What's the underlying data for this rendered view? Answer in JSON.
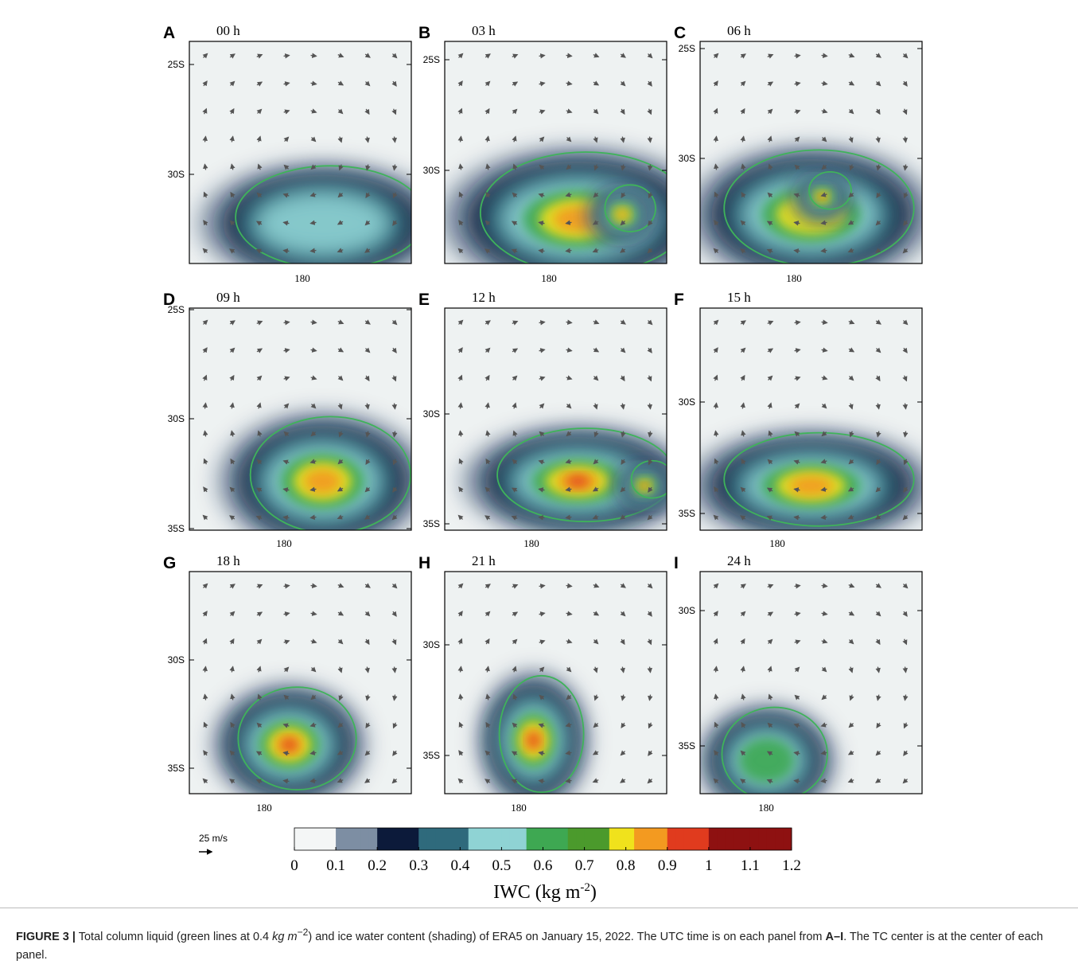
{
  "figure": {
    "panels": [
      {
        "letter": "A",
        "time": "00 h",
        "lat_labels": [
          "25S",
          "30S"
        ],
        "lon_label": "180"
      },
      {
        "letter": "B",
        "time": "03 h",
        "lat_labels": [
          "25S",
          "30S"
        ],
        "lon_label": "180"
      },
      {
        "letter": "C",
        "time": "06 h",
        "lat_labels": [
          "25S",
          "30S"
        ],
        "lon_label": "180"
      },
      {
        "letter": "D",
        "time": "09 h",
        "lat_labels": [
          "25S",
          "30S",
          "35S"
        ],
        "lon_label": "180"
      },
      {
        "letter": "E",
        "time": "12 h",
        "lat_labels": [
          "30S",
          "35S"
        ],
        "lon_label": "180"
      },
      {
        "letter": "F",
        "time": "15 h",
        "lat_labels": [
          "30S",
          "35S"
        ],
        "lon_label": "180"
      },
      {
        "letter": "G",
        "time": "18 h",
        "lat_labels": [
          "30S",
          "35S"
        ],
        "lon_label": "180"
      },
      {
        "letter": "H",
        "time": "21 h",
        "lat_labels": [
          "30S",
          "35S"
        ],
        "lon_label": "180"
      },
      {
        "letter": "I",
        "time": "24 h",
        "lat_labels": [
          "30S",
          "35S"
        ],
        "lon_label": "180"
      }
    ],
    "colorbar": {
      "range": [
        0,
        1.2
      ],
      "ticks": [
        0,
        0.1,
        0.2,
        0.3,
        0.4,
        0.5,
        0.6,
        0.7,
        0.8,
        0.9,
        1,
        1.1,
        1.2
      ],
      "label": "IWC (kg m",
      "label_sup": "-2",
      "label_end": ")"
    },
    "scale_arrow": "25 m/s"
  },
  "caption": {
    "lead": "FIGURE 3 |",
    "text1": " Total column liquid (green lines at 0.4 ",
    "unit": "kg m",
    "unit_sup": "−2",
    "text2": ") and ice water content (shading) of ERA5 on January 15, 2022. The UTC time is on each panel from ",
    "range": "A–I",
    "text3": ". The TC center is at the center of each panel."
  }
}
